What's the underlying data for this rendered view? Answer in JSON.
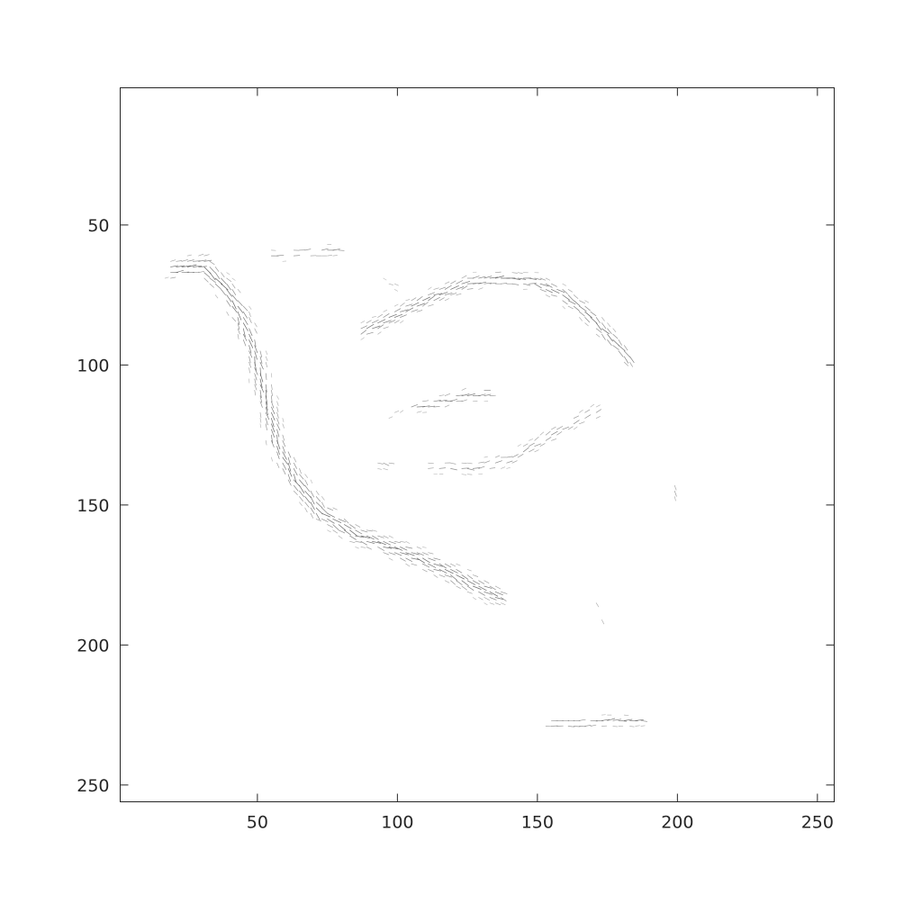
{
  "chart_data": {
    "type": "quiver",
    "title": "",
    "xlabel": "",
    "ylabel": "",
    "xlim": [
      1,
      256
    ],
    "ylim": [
      256,
      1
    ],
    "y_axis_reversed": true,
    "grid": false,
    "legend": "none",
    "x_ticks": [
      50,
      100,
      150,
      200,
      250
    ],
    "y_ticks": [
      50,
      100,
      150,
      200,
      250
    ],
    "x_tick_labels": [
      "50",
      "100",
      "150",
      "200",
      "250"
    ],
    "y_tick_labels": [
      "50",
      "100",
      "150",
      "200",
      "250"
    ],
    "arrow_color": "#555555",
    "strokes": [
      {
        "name": "left-curve",
        "points": [
          [
            20,
            66
          ],
          [
            30,
            64
          ],
          [
            38,
            72
          ],
          [
            44,
            82
          ],
          [
            49,
            96
          ],
          [
            53,
            112
          ],
          [
            57,
            128
          ],
          [
            63,
            140
          ],
          [
            72,
            152
          ],
          [
            84,
            160
          ],
          [
            100,
            166
          ],
          [
            115,
            172
          ],
          [
            126,
            178
          ],
          [
            135,
            182
          ]
        ],
        "width": 9,
        "density": 0.95
      },
      {
        "name": "top-arc",
        "points": [
          [
            88,
            88
          ],
          [
            100,
            82
          ],
          [
            112,
            76
          ],
          [
            124,
            71
          ],
          [
            136,
            69
          ],
          [
            148,
            70
          ],
          [
            158,
            74
          ],
          [
            166,
            80
          ],
          [
            174,
            88
          ],
          [
            182,
            97
          ]
        ],
        "width": 7,
        "density": 0.9
      },
      {
        "name": "top-left-blob",
        "points": [
          [
            54,
            61
          ],
          [
            66,
            60
          ],
          [
            78,
            59
          ]
        ],
        "width": 5,
        "density": 0.6
      },
      {
        "name": "middle-blob",
        "points": [
          [
            106,
            115
          ],
          [
            116,
            113
          ],
          [
            124,
            111
          ],
          [
            132,
            110
          ]
        ],
        "width": 6,
        "density": 0.75
      },
      {
        "name": "diagonal-stroke",
        "points": [
          [
            112,
            136
          ],
          [
            126,
            137
          ],
          [
            140,
            134
          ],
          [
            150,
            128
          ],
          [
            160,
            122
          ],
          [
            170,
            117
          ]
        ],
        "width": 6,
        "density": 0.6
      },
      {
        "name": "small-left-blob",
        "points": [
          [
            94,
            135
          ],
          [
            97,
            136
          ]
        ],
        "width": 5,
        "density": 0.5
      },
      {
        "name": "faint-dots-a",
        "points": [
          [
            96,
            118
          ],
          [
            100,
            116
          ]
        ],
        "width": 4,
        "density": 0.2
      },
      {
        "name": "faint-dots-b",
        "points": [
          [
            96,
            70
          ],
          [
            100,
            72
          ]
        ],
        "width": 3,
        "density": 0.2
      },
      {
        "name": "right-dot",
        "points": [
          [
            199,
            144
          ],
          [
            200,
            146
          ]
        ],
        "width": 4,
        "density": 0.5
      },
      {
        "name": "lower-right-dot",
        "points": [
          [
            171,
            186
          ],
          [
            173,
            190
          ]
        ],
        "width": 4,
        "density": 0.4
      },
      {
        "name": "bottom-blob",
        "points": [
          [
            154,
            228
          ],
          [
            165,
            228
          ],
          [
            177,
            227
          ],
          [
            186,
            227
          ]
        ],
        "width": 5,
        "density": 0.75
      }
    ]
  }
}
